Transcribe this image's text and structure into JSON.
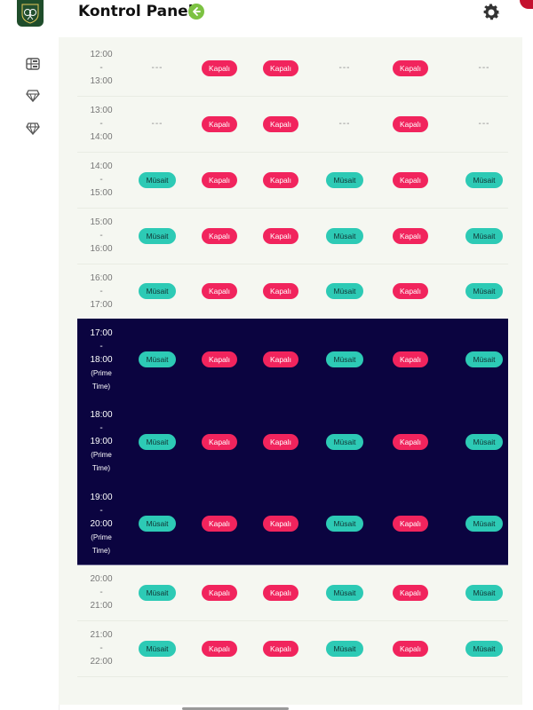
{
  "header": {
    "title": "Kontrol Paneli"
  },
  "sidebar": {
    "items": [
      {
        "icon": "dashboard-icon"
      },
      {
        "icon": "diamond-icon"
      },
      {
        "icon": "diamond-outline-icon"
      }
    ]
  },
  "statuses": {
    "open": "Müsait",
    "closed": "Kapalı",
    "none": "---"
  },
  "colors": {
    "open": "#2dcab5",
    "closed": "#f1245d",
    "prime_background": "#0b0440",
    "accent_green": "#7cc242"
  },
  "schedule": [
    {
      "start": "12:00",
      "end": "13:00",
      "note": "",
      "slots": [
        "none",
        "closed",
        "closed",
        "none",
        "closed",
        "none"
      ]
    },
    {
      "start": "13:00",
      "end": "14:00",
      "note": "",
      "slots": [
        "none",
        "closed",
        "closed",
        "none",
        "closed",
        "none"
      ]
    },
    {
      "start": "14:00",
      "end": "15:00",
      "note": "",
      "slots": [
        "open",
        "closed",
        "closed",
        "open",
        "closed",
        "open"
      ]
    },
    {
      "start": "15:00",
      "end": "16:00",
      "note": "",
      "slots": [
        "open",
        "closed",
        "closed",
        "open",
        "closed",
        "open"
      ]
    },
    {
      "start": "16:00",
      "end": "17:00",
      "note": "",
      "slots": [
        "open",
        "closed",
        "closed",
        "open",
        "closed",
        "open"
      ]
    },
    {
      "start": "17:00",
      "end": "18:00",
      "note": "(Prime Time)",
      "slots": [
        "open",
        "closed",
        "closed",
        "open",
        "closed",
        "open"
      ]
    },
    {
      "start": "18:00",
      "end": "19:00",
      "note": "(Prime Time)",
      "slots": [
        "open",
        "closed",
        "closed",
        "open",
        "closed",
        "open"
      ]
    },
    {
      "start": "19:00",
      "end": "20:00",
      "note": "(Prime Time)",
      "slots": [
        "open",
        "closed",
        "closed",
        "open",
        "closed",
        "open"
      ]
    },
    {
      "start": "20:00",
      "end": "21:00",
      "note": "",
      "slots": [
        "open",
        "closed",
        "closed",
        "open",
        "closed",
        "open"
      ]
    },
    {
      "start": "21:00",
      "end": "22:00",
      "note": "",
      "slots": [
        "open",
        "closed",
        "closed",
        "open",
        "closed",
        "open"
      ]
    }
  ]
}
